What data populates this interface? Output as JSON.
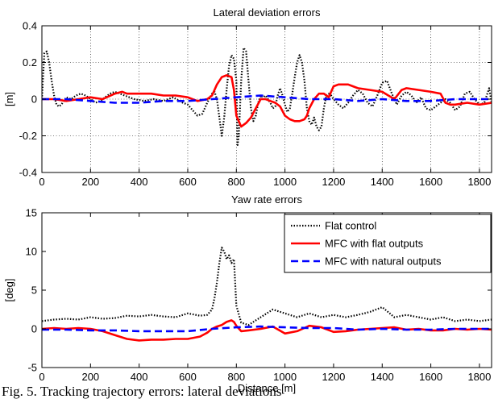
{
  "caption": "Fig. 5. Tracking trajectory errors: lateral deviations",
  "chart_data": [
    {
      "type": "line",
      "title": "Lateral deviation errors",
      "xlabel": "",
      "ylabel": "[m]",
      "xlim": [
        0,
        1850
      ],
      "ylim": [
        -0.4,
        0.4
      ],
      "xticks": [
        "0",
        "200",
        "400",
        "600",
        "800",
        "1000",
        "1200",
        "1400",
        "1600",
        "1800"
      ],
      "yticks": [
        "-0.4",
        "-0.2",
        "0",
        "0.2",
        "0.4"
      ],
      "grid": true,
      "series": [
        {
          "name": "Flat control",
          "color": "#000000",
          "style": "dotted",
          "x": [
            0,
            10,
            20,
            30,
            40,
            50,
            60,
            70,
            80,
            100,
            120,
            140,
            160,
            180,
            200,
            220,
            240,
            260,
            280,
            300,
            340,
            380,
            420,
            460,
            500,
            540,
            580,
            600,
            620,
            640,
            660,
            680,
            700,
            710,
            720,
            730,
            740,
            750,
            760,
            770,
            780,
            790,
            800,
            805,
            810,
            820,
            830,
            840,
            850,
            860,
            870,
            880,
            890,
            900,
            910,
            920,
            930,
            940,
            950,
            960,
            970,
            980,
            990,
            1000,
            1010,
            1020,
            1030,
            1040,
            1050,
            1060,
            1070,
            1080,
            1090,
            1100,
            1110,
            1120,
            1130,
            1140,
            1150,
            1160,
            1170,
            1180,
            1190,
            1200,
            1220,
            1240,
            1260,
            1280,
            1300,
            1320,
            1340,
            1360,
            1380,
            1400,
            1420,
            1440,
            1460,
            1480,
            1500,
            1520,
            1540,
            1560,
            1580,
            1600,
            1620,
            1640,
            1660,
            1680,
            1700,
            1720,
            1740,
            1760,
            1780,
            1800,
            1820,
            1840,
            1850
          ],
          "values": [
            0.0,
            0.25,
            0.26,
            0.2,
            0.1,
            0.02,
            -0.03,
            -0.04,
            -0.03,
            0.01,
            0.0,
            0.02,
            0.03,
            0.02,
            0.0,
            -0.02,
            -0.01,
            0.01,
            0.03,
            0.04,
            0.02,
            0.0,
            -0.01,
            0.0,
            -0.01,
            0.01,
            -0.02,
            -0.03,
            -0.06,
            -0.09,
            -0.08,
            -0.02,
            0.03,
            0.04,
            0.0,
            -0.1,
            -0.2,
            -0.1,
            0.05,
            0.18,
            0.24,
            0.22,
            0.1,
            -0.25,
            -0.2,
            0.1,
            0.28,
            0.26,
            0.1,
            -0.05,
            -0.12,
            -0.09,
            -0.02,
            0.02,
            0.01,
            0.02,
            0.0,
            -0.02,
            -0.05,
            -0.04,
            0.02,
            0.06,
            0.02,
            -0.03,
            -0.07,
            -0.05,
            0.03,
            0.12,
            0.2,
            0.24,
            0.2,
            0.1,
            -0.05,
            -0.12,
            -0.14,
            -0.1,
            -0.15,
            -0.17,
            -0.15,
            -0.05,
            0.02,
            0.03,
            0.02,
            0.0,
            -0.03,
            -0.05,
            -0.02,
            0.02,
            0.05,
            0.03,
            -0.02,
            -0.04,
            0.02,
            0.09,
            0.1,
            0.03,
            -0.03,
            0.02,
            0.04,
            0.02,
            -0.02,
            0.01,
            -0.05,
            -0.06,
            -0.04,
            -0.02,
            0.0,
            -0.02,
            -0.06,
            -0.04,
            0.03,
            0.04,
            0.0,
            -0.03,
            -0.02,
            0.06,
            -0.02
          ]
        },
        {
          "name": "MFC with flat outputs",
          "color": "#ff0000",
          "style": "solid",
          "x": [
            0,
            50,
            100,
            150,
            200,
            250,
            300,
            330,
            350,
            400,
            450,
            500,
            550,
            600,
            640,
            680,
            700,
            720,
            740,
            760,
            780,
            790,
            800,
            820,
            840,
            860,
            880,
            900,
            920,
            940,
            960,
            980,
            1000,
            1020,
            1040,
            1060,
            1080,
            1090,
            1100,
            1120,
            1140,
            1160,
            1180,
            1200,
            1220,
            1240,
            1260,
            1280,
            1300,
            1350,
            1400,
            1450,
            1480,
            1500,
            1550,
            1600,
            1640,
            1660,
            1680,
            1700,
            1750,
            1800,
            1850
          ],
          "values": [
            0.0,
            0.0,
            -0.01,
            0.0,
            0.01,
            0.0,
            0.03,
            0.04,
            0.03,
            0.03,
            0.03,
            0.02,
            0.02,
            0.01,
            -0.01,
            0.0,
            0.02,
            0.08,
            0.12,
            0.13,
            0.12,
            0.05,
            -0.09,
            -0.15,
            -0.13,
            -0.1,
            -0.05,
            0.0,
            0.0,
            -0.01,
            -0.02,
            -0.04,
            -0.09,
            -0.11,
            -0.12,
            -0.12,
            -0.11,
            -0.09,
            -0.05,
            0.0,
            0.03,
            0.03,
            0.01,
            0.07,
            0.08,
            0.08,
            0.08,
            0.07,
            0.06,
            0.05,
            0.04,
            0.0,
            0.05,
            0.06,
            0.05,
            0.04,
            0.03,
            -0.02,
            -0.03,
            -0.03,
            -0.02,
            -0.03,
            -0.02
          ]
        },
        {
          "name": "MFC with natural outputs",
          "color": "#0000ff",
          "style": "dashed",
          "x": [
            0,
            100,
            200,
            300,
            400,
            500,
            600,
            700,
            800,
            900,
            1000,
            1100,
            1200,
            1300,
            1400,
            1500,
            1600,
            1700,
            1800,
            1850
          ],
          "values": [
            0.0,
            0.0,
            -0.01,
            -0.02,
            -0.02,
            -0.01,
            -0.01,
            0.0,
            0.01,
            0.02,
            0.01,
            0.0,
            0.0,
            -0.01,
            0.0,
            -0.01,
            -0.01,
            0.0,
            0.0,
            0.0
          ]
        }
      ]
    },
    {
      "type": "line",
      "title": "Yaw rate errors",
      "xlabel": "Distance [m]",
      "ylabel": "[deg]",
      "xlim": [
        0,
        1850
      ],
      "ylim": [
        -5,
        15
      ],
      "xticks": [
        "0",
        "200",
        "400",
        "600",
        "800",
        "1000",
        "1200",
        "1400",
        "1600",
        "1800"
      ],
      "yticks": [
        "-5",
        "0",
        "5",
        "10",
        "15"
      ],
      "grid": false,
      "legend": "top-right",
      "series": [
        {
          "name": "Flat control",
          "color": "#000000",
          "style": "dotted",
          "x": [
            0,
            50,
            100,
            150,
            200,
            250,
            300,
            350,
            400,
            450,
            500,
            550,
            600,
            650,
            680,
            700,
            710,
            720,
            730,
            740,
            750,
            760,
            770,
            780,
            790,
            800,
            820,
            850,
            900,
            950,
            1000,
            1050,
            1100,
            1150,
            1200,
            1250,
            1300,
            1350,
            1400,
            1450,
            1500,
            1550,
            1600,
            1650,
            1700,
            1750,
            1800,
            1850
          ],
          "values": [
            1.0,
            1.2,
            1.3,
            1.2,
            1.5,
            1.3,
            1.4,
            1.7,
            1.6,
            1.8,
            1.6,
            1.5,
            2.0,
            1.7,
            1.8,
            2.5,
            4.0,
            6.0,
            8.5,
            10.5,
            10.0,
            9.0,
            9.5,
            8.5,
            9.0,
            3.0,
            0.8,
            0.5,
            1.5,
            2.5,
            2.0,
            1.5,
            2.0,
            1.5,
            1.8,
            1.5,
            1.8,
            2.2,
            2.8,
            1.5,
            1.8,
            1.5,
            1.2,
            1.5,
            1.0,
            1.2,
            1.0,
            1.2
          ]
        },
        {
          "name": "MFC with flat outputs",
          "color": "#ff0000",
          "style": "solid",
          "x": [
            0,
            50,
            100,
            150,
            200,
            250,
            300,
            350,
            400,
            450,
            500,
            550,
            600,
            650,
            680,
            700,
            720,
            740,
            760,
            780,
            790,
            800,
            820,
            850,
            900,
            950,
            1000,
            1050,
            1100,
            1150,
            1200,
            1250,
            1300,
            1350,
            1400,
            1450,
            1500,
            1550,
            1600,
            1650,
            1700,
            1750,
            1800,
            1850
          ],
          "values": [
            0.0,
            0.1,
            0.0,
            0.1,
            0.0,
            -0.3,
            -0.8,
            -1.3,
            -1.5,
            -1.4,
            -1.4,
            -1.3,
            -1.3,
            -1.0,
            -0.5,
            0.0,
            0.3,
            0.5,
            0.9,
            1.1,
            0.9,
            0.4,
            -0.3,
            -0.2,
            0.0,
            0.3,
            -0.6,
            -0.3,
            0.4,
            0.2,
            -0.4,
            -0.3,
            -0.1,
            0.0,
            0.1,
            0.2,
            -0.1,
            0.0,
            -0.2,
            -0.2,
            0.0,
            -0.1,
            0.0,
            -0.1
          ]
        },
        {
          "name": "MFC with natural outputs",
          "color": "#0000ff",
          "style": "dashed",
          "x": [
            0,
            100,
            200,
            300,
            400,
            500,
            600,
            700,
            800,
            900,
            1000,
            1100,
            1200,
            1300,
            1400,
            1500,
            1600,
            1700,
            1800,
            1850
          ],
          "values": [
            -0.1,
            -0.1,
            -0.2,
            -0.2,
            -0.3,
            -0.3,
            -0.3,
            0.0,
            0.2,
            0.3,
            0.2,
            0.1,
            0.1,
            -0.1,
            0.0,
            -0.1,
            -0.1,
            0.0,
            0.0,
            0.0
          ]
        }
      ]
    }
  ]
}
